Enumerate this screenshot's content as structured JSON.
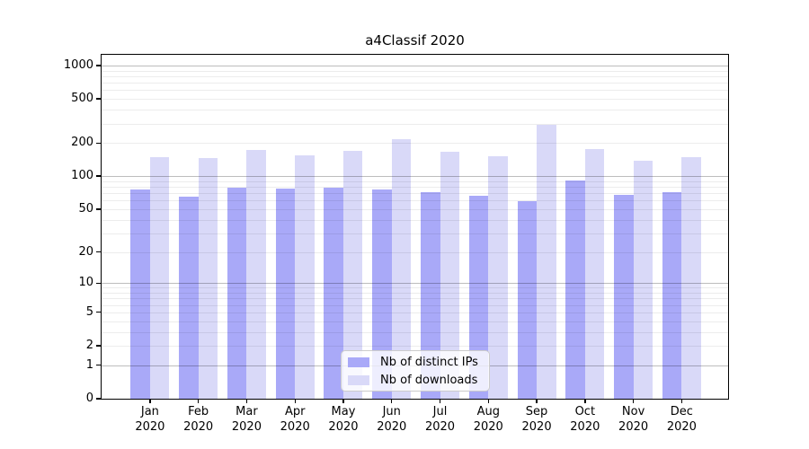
{
  "chart_data": {
    "type": "bar",
    "title": "a4Classif 2020",
    "categories": [
      "Jan",
      "Feb",
      "Mar",
      "Apr",
      "May",
      "Jun",
      "Jul",
      "Aug",
      "Sep",
      "Oct",
      "Nov",
      "Dec"
    ],
    "x_year_label": "2020",
    "series": [
      {
        "name": "Nb of distinct IPs",
        "color": "#a9a9f8",
        "values": [
          75,
          65,
          79,
          77,
          78,
          76,
          72,
          66,
          59,
          92,
          68,
          72
        ]
      },
      {
        "name": "Nb of downloads",
        "color": "#d9d9f8",
        "values": [
          150,
          146,
          172,
          155,
          170,
          216,
          168,
          151,
          290,
          177,
          138,
          149
        ]
      }
    ],
    "y_ticks": [
      0,
      1,
      2,
      5,
      10,
      20,
      50,
      100,
      200,
      500,
      1000
    ],
    "y_scale": "log10(value+1)",
    "ylim": [
      0,
      1250
    ],
    "grid": {
      "major": [
        1,
        10,
        100,
        1000
      ],
      "minor": [
        2,
        3,
        4,
        5,
        6,
        7,
        8,
        9,
        20,
        30,
        40,
        50,
        60,
        70,
        80,
        90,
        200,
        300,
        400,
        500,
        600,
        700,
        800,
        900
      ]
    },
    "legend_position": "bottom-center",
    "background": "#ffffff"
  }
}
